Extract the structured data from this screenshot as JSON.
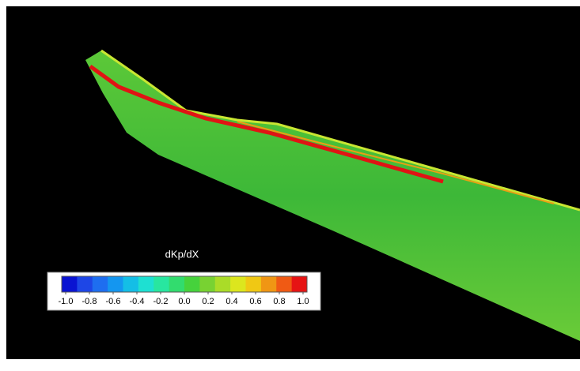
{
  "colorbar": {
    "title": "dKp/dX",
    "range": [
      -1,
      1
    ],
    "ticks": [
      {
        "value": -1,
        "label": "-1.0"
      },
      {
        "value": -0.8,
        "label": "-0.8"
      },
      {
        "value": -0.6,
        "label": "-0.6"
      },
      {
        "value": -0.4,
        "label": "-0.4"
      },
      {
        "value": -0.2,
        "label": "-0.2"
      },
      {
        "value": 0,
        "label": "0.0"
      },
      {
        "value": 0.2,
        "label": "0.2"
      },
      {
        "value": 0.4,
        "label": "0.4"
      },
      {
        "value": 0.6,
        "label": "0.6"
      },
      {
        "value": 0.8,
        "label": "0.8"
      },
      {
        "value": 1,
        "label": "1.0"
      }
    ],
    "colors": [
      "#0a14d2",
      "#1e46e6",
      "#1e6ef0",
      "#1496f0",
      "#14bee6",
      "#1ee0d2",
      "#28e6a0",
      "#32dc6e",
      "#46d23c",
      "#78d232",
      "#aadc28",
      "#dce61e",
      "#f0c814",
      "#f09614",
      "#f05a14",
      "#e61414"
    ]
  }
}
